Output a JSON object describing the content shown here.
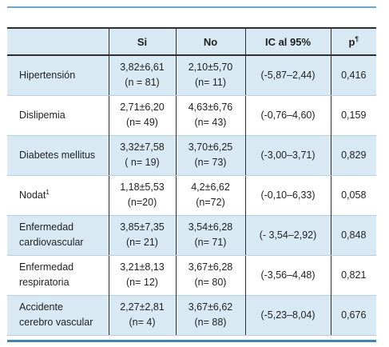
{
  "table": {
    "headers": {
      "col0": "",
      "col1": "Si",
      "col2": "No",
      "col3": "IC al 95%",
      "col4_base": "p",
      "col4_sup": "¶"
    },
    "rows": [
      {
        "label_line1": "Hipertensión",
        "label_line2": "",
        "label_sup": "",
        "si_value": "3,82±6,61",
        "si_n": "(n = 81)",
        "no_value": "2,10±5,70",
        "no_n": "(n= 11)",
        "ic": "(-5,87–2,44)",
        "p": "0,416"
      },
      {
        "label_line1": "Dislipemia",
        "label_line2": "",
        "label_sup": "",
        "si_value": "2,71±6,20",
        "si_n": "(n= 49)",
        "no_value": "4,63±6,76",
        "no_n": "(n= 43)",
        "ic": "(-0,76–4,60)",
        "p": "0,159"
      },
      {
        "label_line1": "Diabetes mellitus",
        "label_line2": "",
        "label_sup": "",
        "si_value": "3,32±7,58",
        "si_n": "( n= 19)",
        "no_value": "3,70±6,25",
        "no_n": "(n= 73)",
        "ic": "(-3,00–3,71)",
        "p": "0,829"
      },
      {
        "label_line1": "Nodat",
        "label_line2": "",
        "label_sup": "1",
        "si_value": "1,18±5,53",
        "si_n": "(n=20)",
        "no_value": "4,2±6,62",
        "no_n": "(n=72)",
        "ic": "(-0,10–6,33)",
        "p": "0,058"
      },
      {
        "label_line1": "Enfermedad",
        "label_line2": "cardiovascular",
        "label_sup": "",
        "si_value": "3,85±7,35",
        "si_n": "(n= 21)",
        "no_value": "3,54±6,28",
        "no_n": "(n= 71)",
        "ic": "(- 3,54–2,92)",
        "p": "0,848"
      },
      {
        "label_line1": "Enfermedad",
        "label_line2": "respiratoria",
        "label_sup": "",
        "si_value": "3,21±8,13",
        "si_n": "(n= 12)",
        "no_value": "3,67±6,28",
        "no_n": "(n= 80)",
        "ic": "(-3,56–4,48)",
        "p": "0,821"
      },
      {
        "label_line1": "Accidente",
        "label_line2": "cerebro vascular",
        "label_sup": "",
        "si_value": "2,27±2,81",
        "si_n": "(n= 4)",
        "no_value": "3,67±6,62",
        "no_n": "(n= 88)",
        "ic": "(-5,23–8,04)",
        "p": "0,676"
      }
    ]
  },
  "colors": {
    "header_bg": "#d9e9f4",
    "zebra_bg": "#d9e9f4",
    "accent_rule": "#3f86b3",
    "separator": "#2f2f2f"
  }
}
